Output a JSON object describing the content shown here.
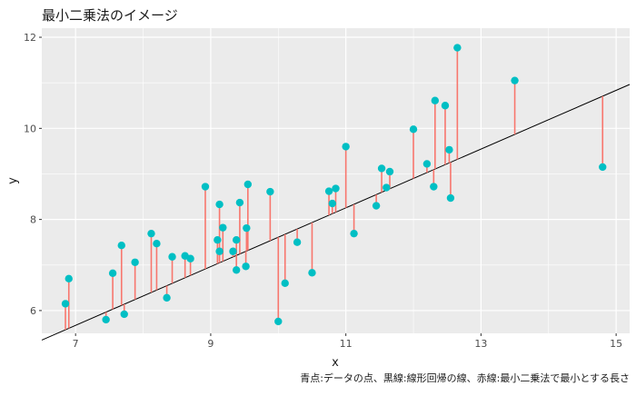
{
  "chart_data": {
    "type": "scatter",
    "title": "最小二乗法のイメージ",
    "xlabel": "x",
    "ylabel": "y",
    "caption": "青点:データの点、黒線:線形回帰の線、赤線:最小二乗法で最小とする長さ",
    "xlim": [
      6.5,
      15.2
    ],
    "ylim": [
      5.5,
      12.2
    ],
    "x_ticks": [
      7,
      9,
      11,
      13,
      15
    ],
    "x_tick_labels": [
      "7",
      "9",
      "11",
      "13",
      "15"
    ],
    "y_ticks": [
      6,
      8,
      10,
      12
    ],
    "y_tick_labels": [
      "6",
      "8",
      "10",
      "12"
    ],
    "grid": true,
    "regression_line": {
      "intercept": 1.16,
      "slope": 0.645
    },
    "colors": {
      "points": "#00BFC4",
      "residuals": "#F8766D",
      "regression": "#000000",
      "panel": "#EBEBEB",
      "grid": "#FFFFFF"
    },
    "points": [
      {
        "x": 6.85,
        "y": 6.15
      },
      {
        "x": 6.9,
        "y": 6.7
      },
      {
        "x": 7.45,
        "y": 5.8
      },
      {
        "x": 7.55,
        "y": 6.82
      },
      {
        "x": 7.68,
        "y": 7.43
      },
      {
        "x": 7.72,
        "y": 5.92
      },
      {
        "x": 7.88,
        "y": 7.06
      },
      {
        "x": 8.12,
        "y": 7.69
      },
      {
        "x": 8.2,
        "y": 7.47
      },
      {
        "x": 8.35,
        "y": 6.28
      },
      {
        "x": 8.43,
        "y": 7.18
      },
      {
        "x": 8.62,
        "y": 7.2
      },
      {
        "x": 8.7,
        "y": 7.14
      },
      {
        "x": 8.92,
        "y": 8.72
      },
      {
        "x": 9.1,
        "y": 7.55
      },
      {
        "x": 9.13,
        "y": 8.33
      },
      {
        "x": 9.13,
        "y": 7.3
      },
      {
        "x": 9.18,
        "y": 7.82
      },
      {
        "x": 9.33,
        "y": 7.3
      },
      {
        "x": 9.38,
        "y": 7.55
      },
      {
        "x": 9.38,
        "y": 6.89
      },
      {
        "x": 9.43,
        "y": 8.37
      },
      {
        "x": 9.52,
        "y": 6.97
      },
      {
        "x": 9.53,
        "y": 7.81
      },
      {
        "x": 9.55,
        "y": 8.77
      },
      {
        "x": 9.88,
        "y": 8.61
      },
      {
        "x": 10.0,
        "y": 5.76
      },
      {
        "x": 10.1,
        "y": 6.6
      },
      {
        "x": 10.28,
        "y": 7.5
      },
      {
        "x": 10.5,
        "y": 6.83
      },
      {
        "x": 10.75,
        "y": 8.62
      },
      {
        "x": 10.8,
        "y": 8.35
      },
      {
        "x": 10.85,
        "y": 8.68
      },
      {
        "x": 11.0,
        "y": 9.6
      },
      {
        "x": 11.12,
        "y": 7.69
      },
      {
        "x": 11.45,
        "y": 8.3
      },
      {
        "x": 11.53,
        "y": 9.12
      },
      {
        "x": 11.6,
        "y": 8.7
      },
      {
        "x": 11.65,
        "y": 9.05
      },
      {
        "x": 12.0,
        "y": 9.98
      },
      {
        "x": 12.2,
        "y": 9.22
      },
      {
        "x": 12.3,
        "y": 8.72
      },
      {
        "x": 12.32,
        "y": 10.61
      },
      {
        "x": 12.47,
        "y": 10.5
      },
      {
        "x": 12.53,
        "y": 9.53
      },
      {
        "x": 12.55,
        "y": 8.47
      },
      {
        "x": 12.65,
        "y": 11.77
      },
      {
        "x": 13.5,
        "y": 11.05
      },
      {
        "x": 14.8,
        "y": 9.15
      }
    ]
  }
}
